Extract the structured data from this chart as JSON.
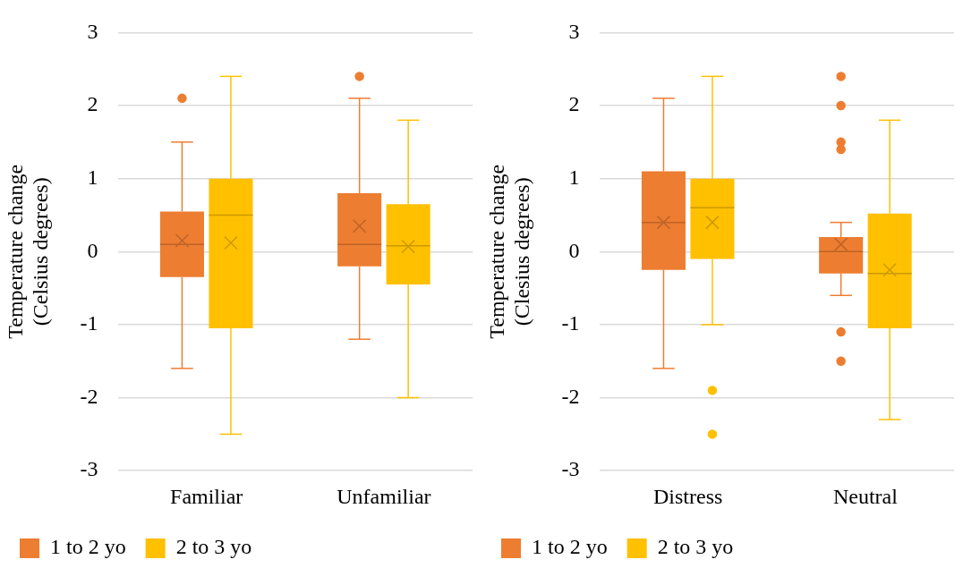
{
  "chart_data": [
    {
      "type": "box",
      "ylabel": "Temperature change (Celsius degrees)",
      "categories": [
        "Familiar",
        "Unfamiliar"
      ],
      "ylim": [
        -3,
        3
      ],
      "yticks": [
        -3,
        -2,
        -1,
        0,
        1,
        2,
        3
      ],
      "grid": "y",
      "legend": "bottom",
      "series": [
        {
          "name": "1 to 2 yo",
          "color": "#ed7d31",
          "boxes": [
            {
              "low": -1.6,
              "q1": -0.35,
              "median": 0.1,
              "q3": 0.55,
              "high": 1.5,
              "mean": 0.15,
              "outliers": [
                2.1
              ]
            },
            {
              "low": -1.2,
              "q1": -0.2,
              "median": 0.1,
              "q3": 0.8,
              "high": 2.1,
              "mean": 0.35,
              "outliers": [
                2.4
              ]
            }
          ]
        },
        {
          "name": "2 to 3 yo",
          "color": "#ffc000",
          "boxes": [
            {
              "low": -2.5,
              "q1": -1.05,
              "median": 0.5,
              "q3": 1.0,
              "high": 2.4,
              "mean": 0.12
            },
            {
              "low": -2.0,
              "q1": -0.45,
              "median": 0.08,
              "q3": 0.65,
              "high": 1.8,
              "mean": 0.07
            }
          ]
        }
      ]
    },
    {
      "type": "box",
      "ylabel": "Temperature change (Clesius degrees)",
      "categories": [
        "Distress",
        "Neutral"
      ],
      "ylim": [
        -3,
        3
      ],
      "yticks": [
        -3,
        -2,
        -1,
        0,
        1,
        2,
        3
      ],
      "grid": "y",
      "legend": "bottom",
      "series": [
        {
          "name": "1 to 2 yo",
          "color": "#ed7d31",
          "boxes": [
            {
              "low": -1.6,
              "q1": -0.25,
              "median": 0.4,
              "q3": 1.1,
              "high": 2.1,
              "mean": 0.4
            },
            {
              "low": -0.6,
              "q1": -0.3,
              "median": 0,
              "q3": 0.2,
              "high": 0.4,
              "mean": 0.1,
              "outliers": [
                2.4,
                2.0,
                1.5,
                1.4,
                -1.1,
                -1.5
              ]
            }
          ]
        },
        {
          "name": "2 to 3 yo",
          "color": "#ffc000",
          "boxes": [
            {
              "low": -1.0,
              "q1": -0.1,
              "median": 0.6,
              "q3": 1.0,
              "high": 2.4,
              "mean": 0.4,
              "outliers": [
                -1.9,
                -2.5
              ]
            },
            {
              "low": -2.3,
              "q1": -1.05,
              "median": -0.3,
              "q3": 0.52,
              "high": 1.8,
              "mean": -0.25
            }
          ]
        }
      ]
    }
  ]
}
